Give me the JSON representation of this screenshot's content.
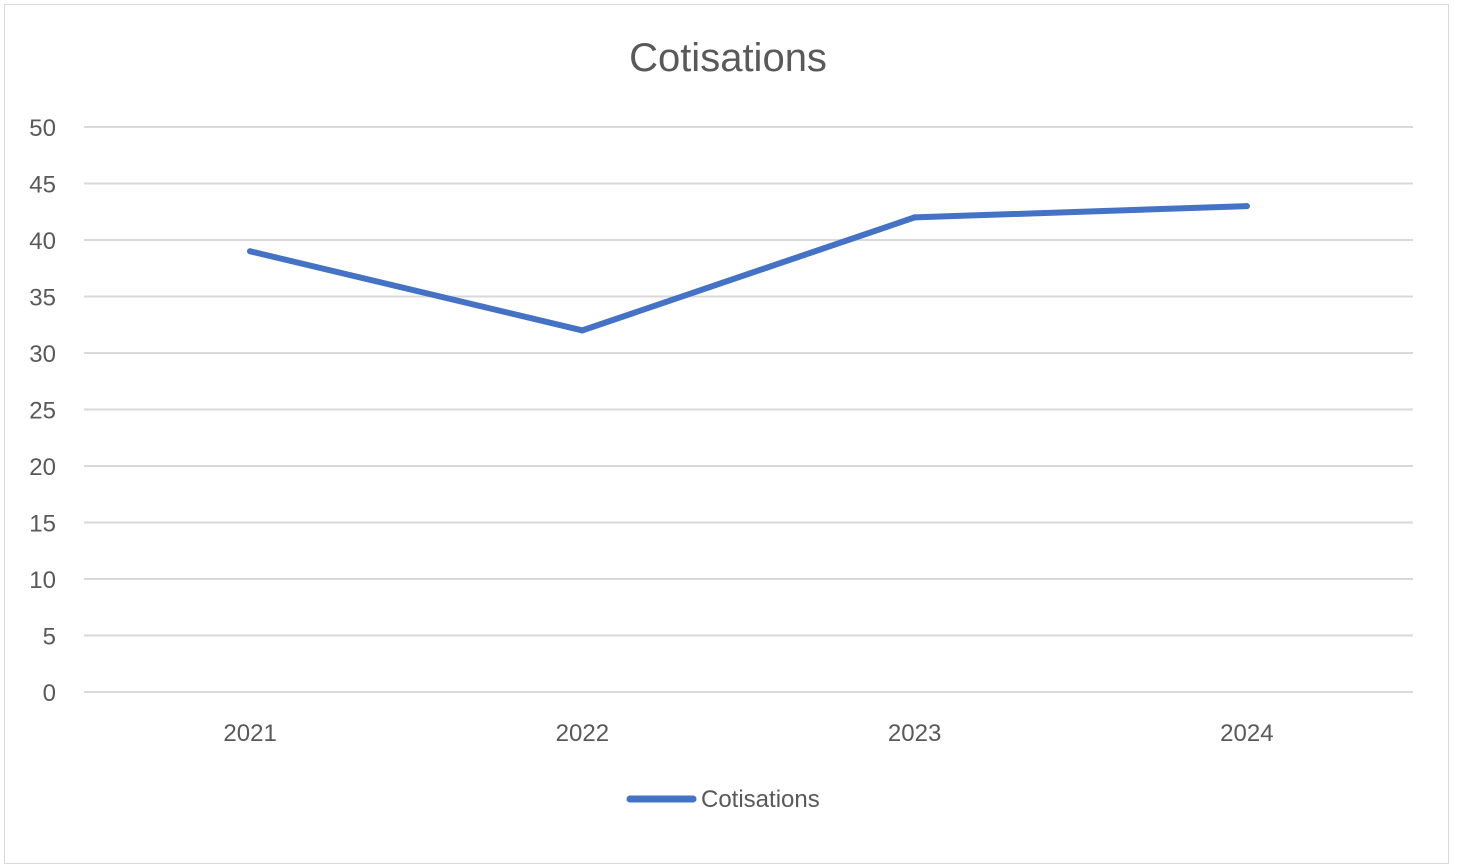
{
  "chart_data": {
    "type": "line",
    "title": "Cotisations",
    "categories": [
      "2021",
      "2022",
      "2023",
      "2024"
    ],
    "series": [
      {
        "name": "Cotisations",
        "values": [
          39,
          32,
          42,
          43
        ]
      }
    ],
    "ylim": [
      0,
      50
    ],
    "yticks": [
      "0",
      "5",
      "10",
      "15",
      "20",
      "25",
      "30",
      "35",
      "40",
      "45",
      "50"
    ],
    "grid": true,
    "legend": "bottom",
    "colors": {
      "series": "#4472c4",
      "grid": "#d9d9d9",
      "text": "#595959"
    }
  }
}
